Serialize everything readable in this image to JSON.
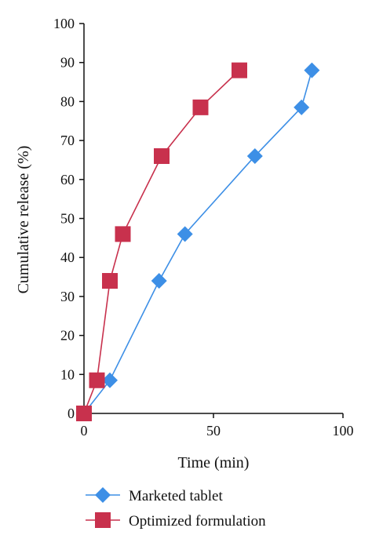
{
  "chart_data": {
    "type": "line",
    "title": "",
    "xlabel": "Time (min)",
    "ylabel": "Cumulative release (%)",
    "xlim": [
      0,
      100
    ],
    "ylim": [
      0,
      100
    ],
    "xticks": [
      0,
      50,
      100
    ],
    "yticks": [
      0,
      10,
      20,
      30,
      40,
      50,
      60,
      70,
      80,
      90,
      100
    ],
    "grid": false,
    "legend_position": "bottom",
    "series": [
      {
        "name": "Marketed tablet",
        "color": "#3d8fe6",
        "marker": "diamond",
        "x": [
          0,
          10,
          29,
          39,
          66,
          84,
          88
        ],
        "y": [
          0,
          8.5,
          34,
          46,
          66,
          78.5,
          88
        ]
      },
      {
        "name": "Optimized formulation",
        "color": "#c8314d",
        "marker": "square",
        "x": [
          0,
          5,
          10,
          15,
          30,
          45,
          60
        ],
        "y": [
          0,
          8.5,
          34,
          46,
          66,
          78.5,
          88
        ]
      }
    ]
  }
}
